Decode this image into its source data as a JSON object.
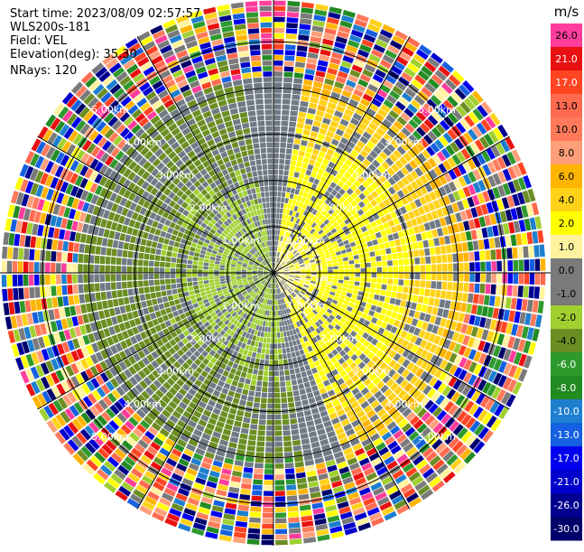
{
  "info": {
    "start_time": "Start time: 2023/08/09 02:57:57",
    "instrument": "WLS200s-181",
    "field": "Field: VEL",
    "elevation": "Elevation(deg): 35.30",
    "nrays": "NRays: 120"
  },
  "chart_data": {
    "type": "heatmap",
    "projection": "polar (PPI)",
    "field": "VEL",
    "units": "m/s",
    "range_rings_km": [
      1,
      2,
      3,
      4,
      5
    ],
    "range_ring_labels": [
      "1.00km",
      "2.00km",
      "3.00km",
      "4.00km",
      "5.00km"
    ],
    "max_range_km": 5.9,
    "gate_count": 50,
    "ray_count": 120,
    "spoke_interval_deg": 30,
    "colorbar": {
      "label": "m/s",
      "ticks": [
        "26.0",
        "21.0",
        "17.0",
        "13.0",
        "10.0",
        "8.0",
        "6.0",
        "4.0",
        "2.0",
        "1.0",
        "0.0",
        "-1.0",
        "-2.0",
        "-4.0",
        "-6.0",
        "-8.0",
        "-10.0",
        "-13.0",
        "-17.0",
        "-21.0",
        "-26.0",
        "-30.0"
      ],
      "colors": [
        "#ff3d9c",
        "#e81010",
        "#ff4422",
        "#ff6a50",
        "#ff7a5a",
        "#ff9f7a",
        "#ffb400",
        "#ffd21a",
        "#ffff00",
        "#fff3a0",
        "#7a7a7a",
        "#7a7a7a",
        "#a0d030",
        "#6b8e23",
        "#2e9a2e",
        "#228b22",
        "#1e7fcf",
        "#1560e0",
        "#0000ee",
        "#0000cc",
        "#000090",
        "#00006a"
      ]
    },
    "wind_pattern": {
      "near_zero_color": "#707a85",
      "positive_sector_deg": [
        10,
        160
      ],
      "negative_sector_deg": [
        170,
        350
      ],
      "noise_start_km": 4.2
    }
  }
}
